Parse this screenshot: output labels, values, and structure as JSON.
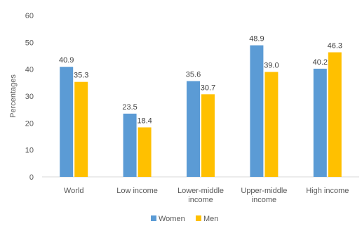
{
  "chart_data": {
    "type": "bar",
    "title": "",
    "xlabel": "",
    "ylabel": "Percentages",
    "ylim": [
      0,
      60
    ],
    "yticks": [
      0,
      10,
      20,
      30,
      40,
      50,
      60
    ],
    "grid": false,
    "legend_position": "bottom",
    "categories": [
      [
        "World"
      ],
      [
        "Low income"
      ],
      [
        "Lower-middle",
        "income"
      ],
      [
        "Upper-middle",
        "income"
      ],
      [
        "High income"
      ]
    ],
    "series": [
      {
        "name": "Women",
        "color": "#5B9BD5",
        "values": [
          40.9,
          23.5,
          35.6,
          48.9,
          40.2
        ],
        "labels": [
          "40.9",
          "23.5",
          "35.6",
          "48.9",
          "40.2"
        ]
      },
      {
        "name": "Men",
        "color": "#FFC000",
        "values": [
          35.3,
          18.4,
          30.7,
          39.0,
          46.3
        ],
        "labels": [
          "35.3",
          "18.4",
          "30.7",
          "39.0",
          "46.3"
        ]
      }
    ]
  }
}
